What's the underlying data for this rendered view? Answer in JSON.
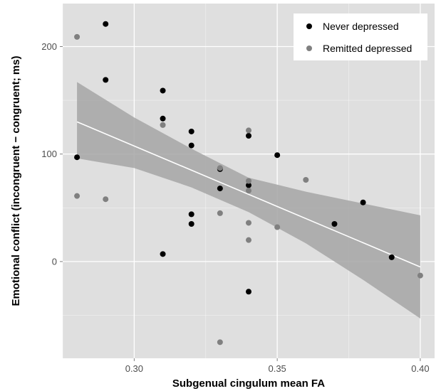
{
  "chart_data": {
    "type": "scatter",
    "title": "",
    "xlabel": "Subgenual cingulum mean FA",
    "ylabel": "Emotional conflict (incongruent − congruent; ms)",
    "xlim": [
      0.275,
      0.405
    ],
    "ylim": [
      -90,
      240
    ],
    "x_ticks": [
      0.3,
      0.35,
      0.4
    ],
    "x_tick_labels": [
      "0.30",
      "0.35",
      "0.40"
    ],
    "y_ticks": [
      0,
      100,
      200
    ],
    "y_tick_labels": [
      "0",
      "100",
      "200"
    ],
    "grid": true,
    "legend_position": "top-right",
    "series": [
      {
        "name": "Never depressed",
        "color": "#000000",
        "points": [
          [
            0.28,
            97
          ],
          [
            0.29,
            221
          ],
          [
            0.29,
            169
          ],
          [
            0.31,
            159
          ],
          [
            0.31,
            133
          ],
          [
            0.31,
            7
          ],
          [
            0.32,
            121
          ],
          [
            0.32,
            108
          ],
          [
            0.32,
            44
          ],
          [
            0.32,
            35
          ],
          [
            0.33,
            86
          ],
          [
            0.33,
            68
          ],
          [
            0.34,
            117
          ],
          [
            0.34,
            71
          ],
          [
            0.34,
            -28
          ],
          [
            0.35,
            99
          ],
          [
            0.37,
            35
          ],
          [
            0.38,
            55
          ],
          [
            0.39,
            4
          ]
        ]
      },
      {
        "name": "Remitted depressed",
        "color": "#808080",
        "points": [
          [
            0.28,
            209
          ],
          [
            0.28,
            61
          ],
          [
            0.29,
            58
          ],
          [
            0.31,
            127
          ],
          [
            0.33,
            87
          ],
          [
            0.33,
            45
          ],
          [
            0.33,
            -75
          ],
          [
            0.34,
            122
          ],
          [
            0.34,
            75
          ],
          [
            0.34,
            66
          ],
          [
            0.34,
            36
          ],
          [
            0.34,
            20
          ],
          [
            0.35,
            32
          ],
          [
            0.36,
            76
          ],
          [
            0.4,
            -13
          ]
        ]
      }
    ],
    "fit_line": {
      "x": [
        0.28,
        0.4
      ],
      "y": [
        130,
        -5
      ],
      "color": "#ffffff"
    },
    "confidence_band": {
      "x": [
        0.28,
        0.3,
        0.32,
        0.34,
        0.36,
        0.38,
        0.4
      ],
      "upper": [
        167,
        134,
        105,
        78,
        65,
        54,
        43
      ],
      "lower": [
        96,
        87,
        69,
        46,
        17,
        -17,
        -53
      ],
      "color": "#a6a6a6"
    },
    "panel_color": "#dfdfdf",
    "grid_color": "#ffffff"
  }
}
